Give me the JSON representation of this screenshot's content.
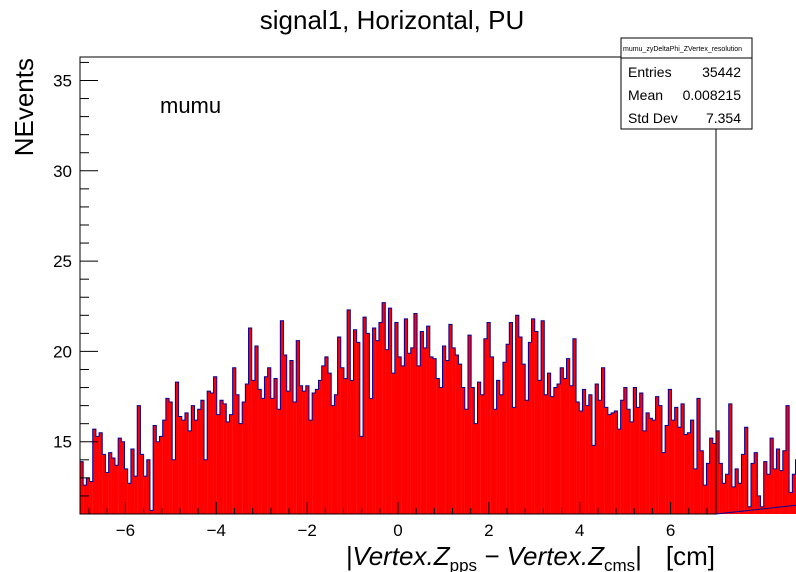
{
  "chart_data": {
    "type": "bar",
    "title": "signal1, Horizontal, PU",
    "ylabel": "NEvents",
    "xlabel": {
      "prefix": "|Vertex.Z",
      "sub1": "pps",
      "middle": " − Vertex.Z",
      "sub2": "cms",
      "suffix": "|",
      "unit": "[cm]"
    },
    "annotation": "mumu",
    "xlim": [
      -7,
      7
    ],
    "ylim": [
      11,
      36.3
    ],
    "x_ticks": [
      -6,
      -4,
      -2,
      0,
      2,
      4,
      6
    ],
    "x_tick_labels": [
      "−6",
      "−4",
      "−2",
      "0",
      "2",
      "4",
      "6"
    ],
    "y_ticks": [
      15,
      20,
      25,
      30,
      35
    ],
    "y_tick_labels": [
      "15",
      "20",
      "25",
      "30",
      "35"
    ],
    "fill_color": "#ff0000",
    "line_color": "#000099",
    "bin_width": 0.07,
    "values": [
      13.9,
      12.6,
      13,
      12.8,
      15.7,
      15.3,
      15.5,
      14.3,
      13.3,
      14.4,
      14.1,
      13.7,
      15.2,
      15,
      13.5,
      12.7,
      14.6,
      13.1,
      17,
      14.3,
      13.1,
      14,
      11.2,
      15.9,
      15,
      15.3,
      16.2,
      17.4,
      17.2,
      14,
      18.3,
      16.4,
      16.2,
      16.6,
      15.6,
      17,
      16.2,
      16.8,
      17.3,
      14,
      17.8,
      17.7,
      18.6,
      16.5,
      17.3,
      17.1,
      16.1,
      16.5,
      19.1,
      17.6,
      16,
      17.2,
      18.2,
      21.3,
      18.4,
      20.3,
      17.9,
      17.4,
      18.6,
      19.1,
      17.4,
      18.5,
      16.8,
      21.7,
      19.8,
      17.8,
      19.5,
      17.2,
      20.6,
      18.1,
      17.8,
      18.1,
      16.2,
      17.7,
      17.9,
      18.4,
      19.2,
      19.7,
      18.8,
      17,
      17.6,
      20.8,
      19.1,
      18.5,
      22.3,
      18.4,
      21.2,
      20.5,
      15.3,
      21.9,
      21,
      17.4,
      21.3,
      20.6,
      21.6,
      22.7,
      20.1,
      22.4,
      18.8,
      21.6,
      19.7,
      19.2,
      21.8,
      19.9,
      20.2,
      22.1,
      19.2,
      21.1,
      20.2,
      21.4,
      19.7,
      19.6,
      18.5,
      18,
      20.3,
      19.5,
      21.5,
      20.2,
      19.8,
      19.3,
      18,
      16.8,
      20.9,
      18,
      16,
      18.3,
      17.6,
      20.7,
      21.6,
      19.7,
      16.8,
      18.4,
      17.6,
      19.4,
      20.4,
      21.6,
      16.9,
      22,
      20.8,
      19.3,
      17.3,
      20.5,
      21.8,
      21.1,
      18.4,
      21.7,
      17.6,
      18.8,
      17.5,
      18,
      18.2,
      19.1,
      18.5,
      19.6,
      18.1,
      20.7,
      17.2,
      16.7,
      17.9,
      17,
      17.6,
      14.8,
      18.2,
      17.3,
      19.1,
      16.9,
      16.5,
      16.6,
      16.7,
      15.7,
      17.3,
      18,
      16.8,
      16.1,
      18,
      16.9,
      17.7,
      15.6,
      16.6,
      16.3,
      16.2,
      17.5,
      17,
      14.4,
      15.9,
      17.9,
      16.2,
      16.9,
      15.8,
      17.1,
      15.4,
      15.5,
      16.2,
      13.5,
      17.4,
      14.5,
      12.6,
      13.8,
      15.2,
      14.9,
      15.6,
      13.8,
      12.7,
      13.2,
      17.1,
      12.5,
      13.5,
      12.7,
      14.3,
      15.8,
      11.4,
      13.8,
      14.4,
      12,
      11.4,
      13.9,
      13.2,
      15.2,
      13.5,
      14.6,
      13.4,
      14.5,
      17,
      12.2,
      13.2,
      14,
      12.3,
      13.3,
      12,
      12.7,
      11.6
    ]
  },
  "stats_box": {
    "title": "mumu_zyDeltaPhi_ZVertex_resolution",
    "rows": [
      {
        "label": "Entries",
        "value": "35442"
      },
      {
        "label": "Mean",
        "value": "0.008215"
      },
      {
        "label": "Std Dev",
        "value": "7.354"
      }
    ]
  }
}
